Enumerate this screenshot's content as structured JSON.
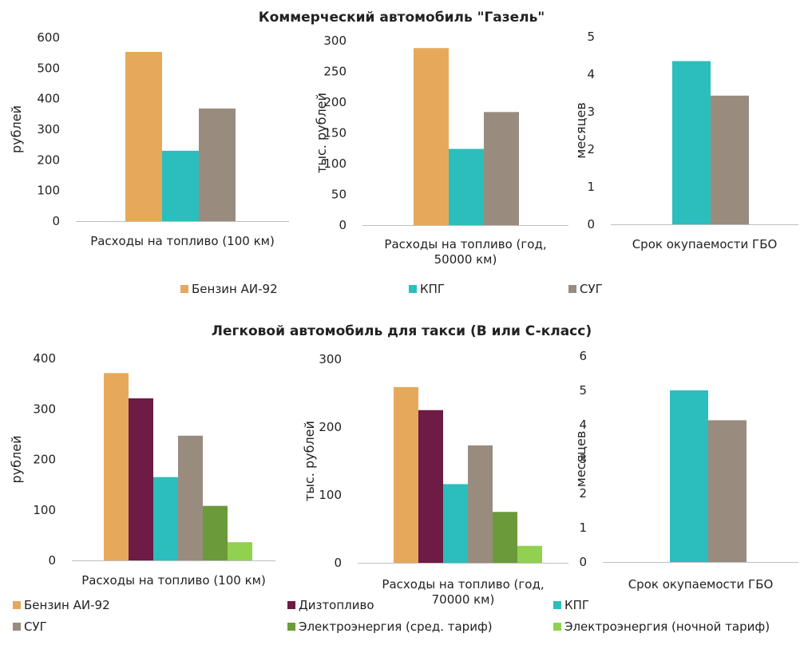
{
  "colors": {
    "petrol": "#E6A95C",
    "diesel": "#6E1B45",
    "cng": "#2CBDBD",
    "lpg": "#9A8B7F",
    "electric_avg": "#6B9A3A",
    "electric_night": "#92D050",
    "axis": "#bfbfbf"
  },
  "sections": [
    {
      "title": "Коммерческий автомобиль \"Газель\"",
      "legend": [
        {
          "label": "Бензин АИ-92",
          "color_key": "petrol"
        },
        {
          "label": "КПГ",
          "color_key": "cng"
        },
        {
          "label": "СУГ",
          "color_key": "lpg"
        }
      ]
    },
    {
      "title": "Легковой автомобиль для такси (B или C-класс)",
      "legend": [
        {
          "label": "Бензин АИ-92",
          "color_key": "petrol"
        },
        {
          "label": "Дизтопливо",
          "color_key": "diesel"
        },
        {
          "label": "КПГ",
          "color_key": "cng"
        },
        {
          "label": "СУГ",
          "color_key": "lpg"
        },
        {
          "label": "Электроэнергия (сред. тариф)",
          "color_key": "electric_avg"
        },
        {
          "label": "Электроэнергия (ночной тариф)",
          "color_key": "electric_night"
        }
      ]
    }
  ],
  "chart_data": [
    {
      "type": "bar",
      "section": 0,
      "ylabel": "рублей",
      "ylim": [
        0,
        600
      ],
      "yticks": [
        0,
        100,
        200,
        300,
        400,
        500,
        600
      ],
      "category": [
        "Расходы на топливо (100 км)"
      ],
      "series": [
        {
          "name": "Бензин АИ-92",
          "color_key": "petrol",
          "value": 553
        },
        {
          "name": "КПГ",
          "color_key": "cng",
          "value": 230
        },
        {
          "name": "СУГ",
          "color_key": "lpg",
          "value": 368
        }
      ]
    },
    {
      "type": "bar",
      "section": 0,
      "ylabel": "тыс. рублей",
      "ylim": [
        0,
        300
      ],
      "yticks": [
        0,
        50,
        100,
        150,
        200,
        250,
        300
      ],
      "category": [
        "Расходы на топливо (год,",
        "50000 км)"
      ],
      "series": [
        {
          "name": "Бензин АИ-92",
          "color_key": "petrol",
          "value": 288
        },
        {
          "name": "КПГ",
          "color_key": "cng",
          "value": 124
        },
        {
          "name": "СУГ",
          "color_key": "lpg",
          "value": 184
        }
      ]
    },
    {
      "type": "bar",
      "section": 0,
      "ylabel": "месяцев",
      "ylim": [
        0,
        5
      ],
      "yticks": [
        0,
        1,
        2,
        3,
        4,
        5
      ],
      "category": [
        "Срок окупаемости ГБО"
      ],
      "series": [
        {
          "name": "КПГ",
          "color_key": "cng",
          "value": 4.35
        },
        {
          "name": "СУГ",
          "color_key": "lpg",
          "value": 3.43
        }
      ]
    },
    {
      "type": "bar",
      "section": 1,
      "ylabel": "рублей",
      "ylim": [
        0,
        400
      ],
      "yticks": [
        0,
        100,
        200,
        300,
        400
      ],
      "category": [
        "Расходы на топливо (100 км)"
      ],
      "series": [
        {
          "name": "Бензин АИ-92",
          "color_key": "petrol",
          "value": 371
        },
        {
          "name": "Дизтопливо",
          "color_key": "diesel",
          "value": 321
        },
        {
          "name": "КПГ",
          "color_key": "cng",
          "value": 165
        },
        {
          "name": "СУГ",
          "color_key": "lpg",
          "value": 247
        },
        {
          "name": "Электроэнергия (сред. тариф)",
          "color_key": "electric_avg",
          "value": 108
        },
        {
          "name": "Электроэнергия (ночной тариф)",
          "color_key": "electric_night",
          "value": 36
        }
      ]
    },
    {
      "type": "bar",
      "section": 1,
      "ylabel": "тыс. рублей",
      "ylim": [
        0,
        300
      ],
      "yticks": [
        0,
        100,
        200,
        300
      ],
      "category": [
        "Расходы на топливо (год,",
        "70000 км)"
      ],
      "series": [
        {
          "name": "Бензин АИ-92",
          "color_key": "petrol",
          "value": 259
        },
        {
          "name": "Дизтопливо",
          "color_key": "diesel",
          "value": 225
        },
        {
          "name": "КПГ",
          "color_key": "cng",
          "value": 116
        },
        {
          "name": "СУГ",
          "color_key": "lpg",
          "value": 173
        },
        {
          "name": "Электроэнергия (сред. тариф)",
          "color_key": "electric_avg",
          "value": 75
        },
        {
          "name": "Электроэнергия (ночной тариф)",
          "color_key": "electric_night",
          "value": 25
        }
      ]
    },
    {
      "type": "bar",
      "section": 1,
      "ylabel": "месяцев",
      "ylim": [
        0,
        6
      ],
      "yticks": [
        0,
        1,
        2,
        3,
        4,
        5,
        6
      ],
      "category": [
        "Срок окупаемости ГБО"
      ],
      "series": [
        {
          "name": "КПГ",
          "color_key": "cng",
          "value": 5.0
        },
        {
          "name": "СУГ",
          "color_key": "lpg",
          "value": 4.13
        }
      ]
    }
  ]
}
